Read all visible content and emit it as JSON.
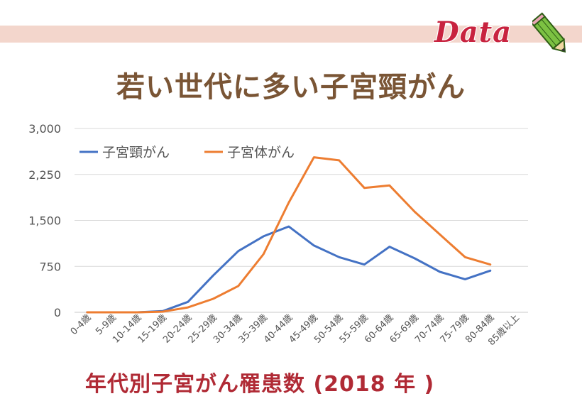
{
  "badge": {
    "text": "Data",
    "icon": "pencil-icon"
  },
  "title": "若い世代に多い子宮頸がん",
  "footer": "年代別子宮がん罹患数 (2018 年 )",
  "chart_data": {
    "type": "line",
    "title": "若い世代に多い子宮頸がん",
    "xlabel": "",
    "ylabel": "",
    "ylim": [
      0,
      3000
    ],
    "yticks": [
      0,
      750,
      1500,
      2250,
      3000
    ],
    "ytick_labels": [
      "0",
      "750",
      "1,500",
      "2,250",
      "3,000"
    ],
    "grid": true,
    "legend_position": "top-left",
    "categories": [
      "0-4歳",
      "5-9歳",
      "10-14歳",
      "15-19歳",
      "20-24歳",
      "25-29歳",
      "30-34歳",
      "35-39歳",
      "40-44歳",
      "45-49歳",
      "50-54歳",
      "55-59歳",
      "60-64歳",
      "65-69歳",
      "70-74歳",
      "75-79歳",
      "80-84歳",
      "85歳以上"
    ],
    "series": [
      {
        "name": "子宮頸がん",
        "color": "#4472c4",
        "values": [
          0,
          0,
          0,
          20,
          170,
          600,
          1000,
          1240,
          1400,
          1090,
          900,
          780,
          1070,
          880,
          660,
          540,
          680,
          null
        ]
      },
      {
        "name": "子宮体がん",
        "color": "#ed7d31",
        "values": [
          0,
          0,
          0,
          10,
          80,
          220,
          430,
          950,
          1790,
          2530,
          2480,
          2030,
          2070,
          1640,
          1270,
          900,
          780,
          null
        ]
      }
    ]
  }
}
